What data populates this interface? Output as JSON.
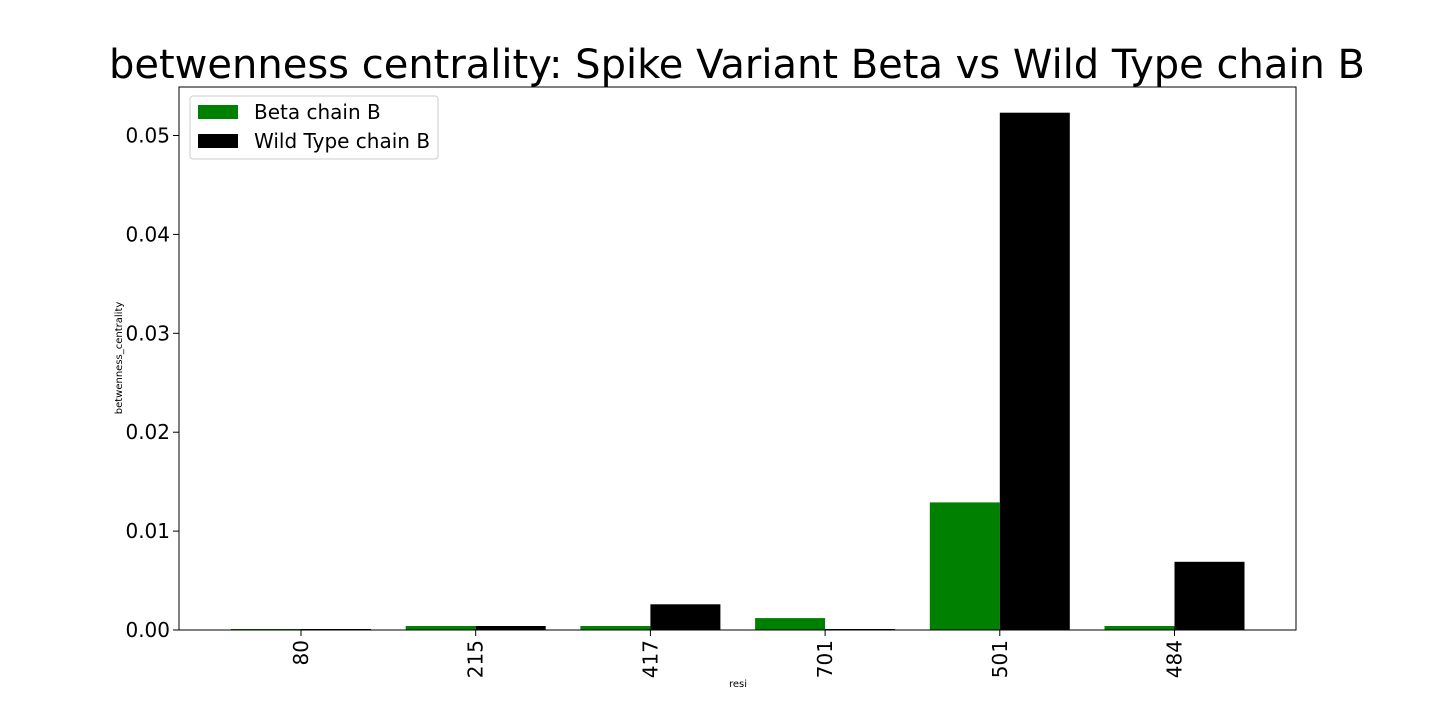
{
  "chart_data": {
    "type": "bar",
    "title": "betwenness centrality: Spike Variant Beta vs Wild Type chain B",
    "xlabel": "resi",
    "ylabel": "betwenness_centrality",
    "categories": [
      "80",
      "215",
      "417",
      "701",
      "501",
      "484"
    ],
    "series": [
      {
        "name": "Beta chain B",
        "color": "#008000",
        "values": [
          0.0001,
          0.0004,
          0.0004,
          0.0012,
          0.0129,
          0.0004
        ]
      },
      {
        "name": "Wild Type chain B",
        "color": "#000000",
        "values": [
          0.0001,
          0.0004,
          0.0026,
          0.0001,
          0.0523,
          0.0069
        ]
      }
    ],
    "ylim": [
      0,
      0.0549
    ],
    "yticks": [
      "0.00",
      "0.01",
      "0.02",
      "0.03",
      "0.04",
      "0.05"
    ],
    "ytick_values": [
      0,
      0.01,
      0.02,
      0.03,
      0.04,
      0.05
    ],
    "grid": false,
    "legend_position": "top-left",
    "x_tick_rotation": "vertical"
  }
}
